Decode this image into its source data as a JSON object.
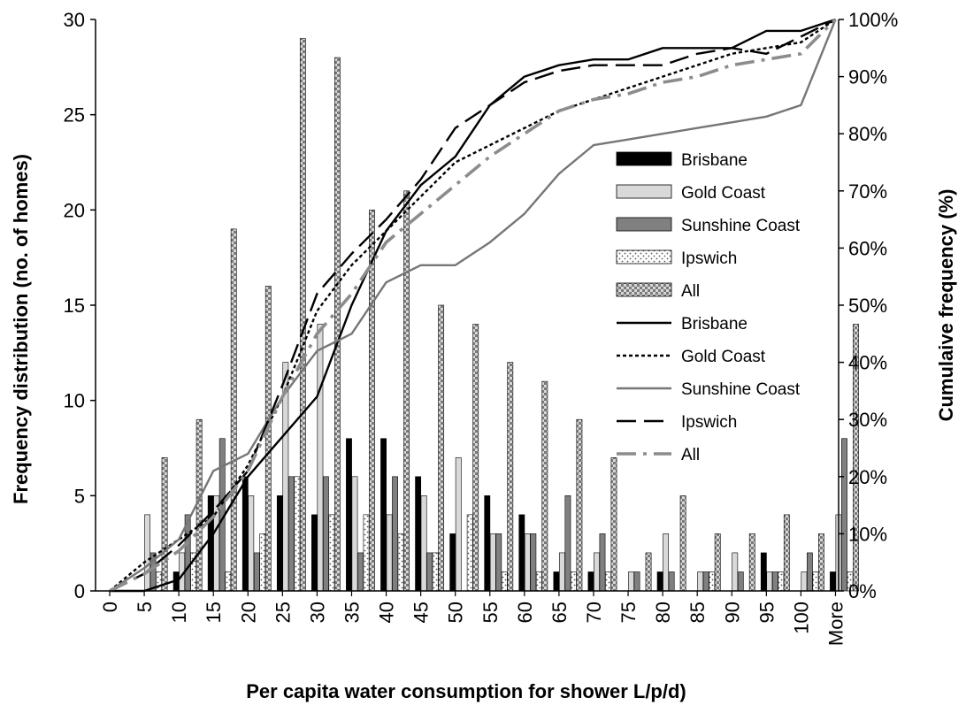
{
  "chart_data": {
    "type": "bar",
    "categories": [
      "0",
      "5",
      "10",
      "15",
      "20",
      "25",
      "30",
      "35",
      "40",
      "45",
      "50",
      "55",
      "60",
      "65",
      "70",
      "75",
      "80",
      "85",
      "90",
      "95",
      "100",
      "More"
    ],
    "xlabel": "Per capita water consumption for shower L/p/d)",
    "ylabel": "Frequency distribution (no. of homes)",
    "y2label": "Cumulaive frequency (%)",
    "ylim": [
      0,
      30
    ],
    "yticks": [
      "0",
      "5",
      "10",
      "15",
      "20",
      "25",
      "30"
    ],
    "y2lim": [
      0,
      100
    ],
    "y2ticks": [
      "0%",
      "10%",
      "20%",
      "30%",
      "40%",
      "50%",
      "60%",
      "70%",
      "80%",
      "90%",
      "100%"
    ],
    "legend_placement": "right-center",
    "bar_series": [
      {
        "name": "Brisbane",
        "fill": "#000000",
        "pattern": "solid",
        "values": [
          0,
          0,
          1,
          5,
          6,
          5,
          4,
          8,
          8,
          6,
          3,
          5,
          4,
          1,
          1,
          0,
          1,
          0,
          0,
          2,
          0,
          1
        ]
      },
      {
        "name": "Gold Coast",
        "fill": "#d9d9d9",
        "pattern": "solid",
        "values": [
          0,
          4,
          2,
          5,
          5,
          12,
          14,
          6,
          4,
          5,
          7,
          3,
          3,
          2,
          2,
          1,
          3,
          1,
          2,
          1,
          1,
          4
        ]
      },
      {
        "name": "Sunshine Coast",
        "fill": "#808080",
        "pattern": "solid",
        "values": [
          0,
          2,
          4,
          8,
          2,
          6,
          6,
          2,
          6,
          2,
          0,
          3,
          3,
          5,
          3,
          1,
          1,
          1,
          1,
          1,
          2,
          8
        ]
      },
      {
        "name": "Ipswich",
        "fill": "#ffffff",
        "pattern": "dots",
        "values": [
          0,
          1,
          2,
          1,
          3,
          6,
          4,
          4,
          3,
          2,
          4,
          1,
          1,
          1,
          1,
          0,
          0,
          1,
          0,
          1,
          1,
          1
        ]
      },
      {
        "name": "All",
        "fill": "#8c8c8c",
        "pattern": "weave",
        "values": [
          0,
          7,
          9,
          19,
          16,
          29,
          28,
          20,
          21,
          15,
          14,
          12,
          11,
          9,
          7,
          2,
          5,
          3,
          3,
          4,
          3,
          14
        ]
      }
    ],
    "line_series": [
      {
        "name": "Brisbane",
        "axis": "right",
        "color": "#000000",
        "dash": "solid",
        "values": [
          0,
          0,
          2,
          10,
          20,
          27,
          34,
          50,
          63,
          71,
          76,
          85,
          90,
          92,
          93,
          93,
          95,
          95,
          95,
          98,
          98,
          100
        ]
      },
      {
        "name": "Gold Coast",
        "axis": "right",
        "color": "#000000",
        "dash": "dotted",
        "values": [
          0,
          5,
          9,
          13,
          22,
          34,
          49,
          57,
          63,
          69,
          75,
          78,
          81,
          84,
          86,
          88,
          90,
          92,
          94,
          95,
          96,
          100
        ]
      },
      {
        "name": "Sunshine Coast",
        "axis": "right",
        "color": "#767676",
        "dash": "solid",
        "values": [
          0,
          4,
          9,
          21,
          24,
          34,
          42,
          45,
          54,
          57,
          57,
          61,
          66,
          73,
          78,
          79,
          80,
          81,
          82,
          83,
          85,
          100
        ]
      },
      {
        "name": "Ipswich",
        "axis": "right",
        "color": "#000000",
        "dash": "long-dash",
        "values": [
          0,
          3,
          8,
          14,
          21,
          36,
          52,
          59,
          65,
          72,
          81,
          85,
          89,
          91,
          92,
          92,
          92,
          94,
          95,
          94,
          97,
          100
        ]
      },
      {
        "name": "All",
        "axis": "right",
        "color": "#8c8c8c",
        "dash": "dash-dot",
        "values": [
          0,
          3,
          7,
          13,
          21,
          34,
          45,
          52,
          61,
          66,
          71,
          76,
          80,
          84,
          86,
          87,
          89,
          90,
          92,
          93,
          94,
          100
        ]
      }
    ]
  }
}
